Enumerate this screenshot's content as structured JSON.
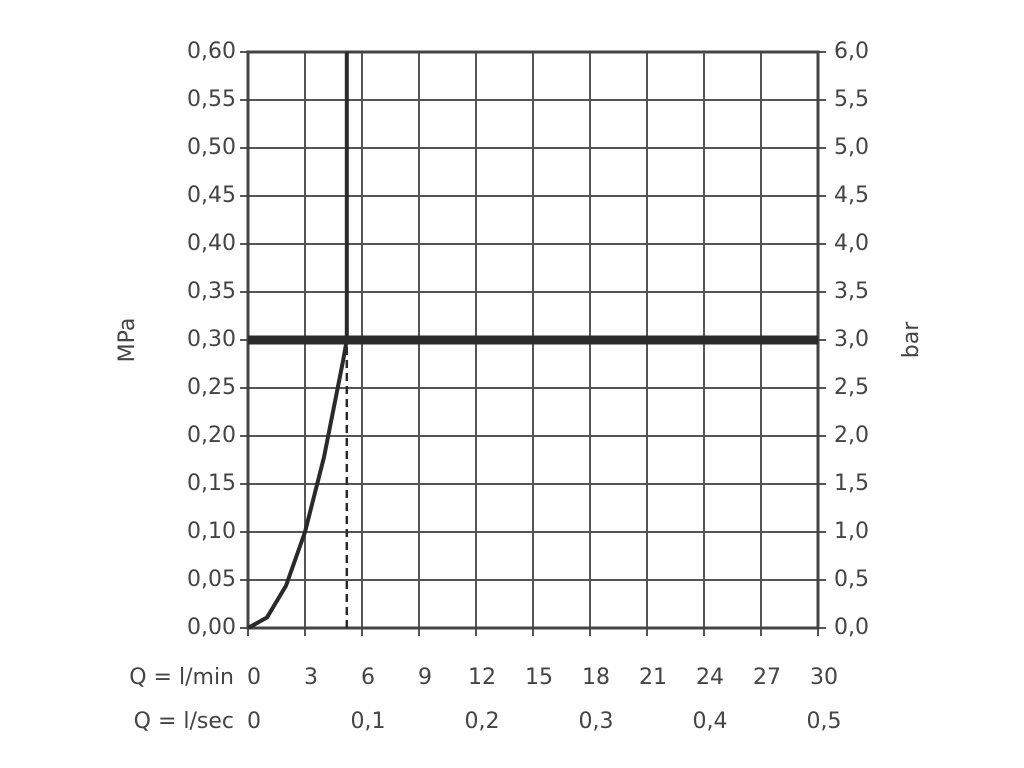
{
  "chart_data": {
    "type": "line",
    "ylabel": "MPa",
    "y2label": "bar",
    "xlabel": "Q = l/min",
    "x2label": "Q = l/sec",
    "xlim": [
      0,
      30
    ],
    "xticks": [
      0,
      3,
      6,
      9,
      12,
      15,
      18,
      21,
      24,
      27,
      30
    ],
    "x2lim": [
      0,
      0.5
    ],
    "x2ticks": [
      0,
      {
        "value": 0.1,
        "label": "0,1"
      },
      {
        "value": 0.2,
        "label": "0,2"
      },
      {
        "value": 0.3,
        "label": "0,3"
      },
      {
        "value": 0.4,
        "label": "0,4"
      },
      {
        "value": 0.5,
        "label": "0,5"
      }
    ],
    "ylim": [
      0,
      0.6
    ],
    "yticks": [
      {
        "value": 0,
        "label": "0,00"
      },
      {
        "value": 0.05,
        "label": "0,05"
      },
      {
        "value": 0.1,
        "label": "0,10"
      },
      {
        "value": 0.15,
        "label": "0,15"
      },
      {
        "value": 0.2,
        "label": "0,20"
      },
      {
        "value": 0.25,
        "label": "0,25"
      },
      {
        "value": 0.3,
        "label": "0,30"
      },
      {
        "value": 0.35,
        "label": "0,35"
      },
      {
        "value": 0.4,
        "label": "0,40"
      },
      {
        "value": 0.45,
        "label": "0,45"
      },
      {
        "value": 0.5,
        "label": "0,50"
      },
      {
        "value": 0.55,
        "label": "0,55"
      },
      {
        "value": 0.6,
        "label": "0,60"
      }
    ],
    "y2lim": [
      0,
      6
    ],
    "y2ticks": [
      {
        "value": 0,
        "label": "0,0"
      },
      {
        "value": 0.5,
        "label": "0,5"
      },
      {
        "value": 1,
        "label": "1,0"
      },
      {
        "value": 1.5,
        "label": "1,5"
      },
      {
        "value": 2,
        "label": "2,0"
      },
      {
        "value": 2.5,
        "label": "2,5"
      },
      {
        "value": 3,
        "label": "3,0"
      },
      {
        "value": 3.5,
        "label": "3,5"
      },
      {
        "value": 4,
        "label": "4,0"
      },
      {
        "value": 4.5,
        "label": "4,5"
      },
      {
        "value": 5,
        "label": "5,0"
      },
      {
        "value": 5.5,
        "label": "5,5"
      },
      {
        "value": 6,
        "label": "6,0"
      }
    ],
    "grid": true,
    "series": [
      {
        "color": "#2a2a2a",
        "x": [
          0,
          1,
          2,
          3,
          4,
          5,
          5.2,
          5.2
        ],
        "values": [
          0,
          0.011,
          0.044,
          0.1,
          0.178,
          0.278,
          0.3,
          0.6
        ]
      }
    ],
    "hline": 0.3,
    "dashed_x": 5.2
  }
}
